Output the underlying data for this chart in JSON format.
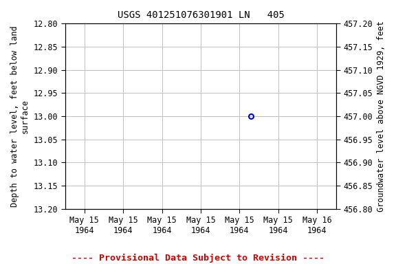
{
  "title": "USGS 401251076301901 LN   405",
  "ylabel_left": "Depth to water level, feet below land\nsurface",
  "ylabel_right": "Groundwater level above NGVD 1929, feet",
  "footnote": "---- Provisional Data Subject to Revision ----",
  "ylim_left_top": 12.8,
  "ylim_left_bottom": 13.2,
  "ylim_right_top": 457.2,
  "ylim_right_bottom": 456.8,
  "yticks_left": [
    12.8,
    12.85,
    12.9,
    12.95,
    13.0,
    13.05,
    13.1,
    13.15,
    13.2
  ],
  "ytick_labels_left": [
    "12.80",
    "12.85",
    "12.90",
    "12.95",
    "13.00",
    "13.05",
    "13.10",
    "13.15",
    "13.20"
  ],
  "yticks_right": [
    457.2,
    457.15,
    457.1,
    457.05,
    457.0,
    456.95,
    456.9,
    456.85,
    456.8
  ],
  "ytick_labels_right": [
    "457.20",
    "457.15",
    "457.10",
    "457.05",
    "457.00",
    "456.95",
    "456.90",
    "456.85",
    "456.80"
  ],
  "xtick_labels": [
    "May 15\n1964",
    "May 15\n1964",
    "May 15\n1964",
    "May 15\n1964",
    "May 15\n1964",
    "May 15\n1964",
    "May 16\n1964"
  ],
  "xtick_positions": [
    0,
    1,
    2,
    3,
    4,
    5,
    6
  ],
  "xlim": [
    -0.5,
    6.5
  ],
  "data_x": 4.3,
  "data_y": 13.0,
  "data_color": "#0000bb",
  "grid_color": "#c0c0c0",
  "background_color": "#ffffff",
  "title_fontsize": 10,
  "axis_label_fontsize": 8.5,
  "tick_fontsize": 8.5,
  "footnote_fontsize": 9.5,
  "footnote_color": "#cc0000"
}
